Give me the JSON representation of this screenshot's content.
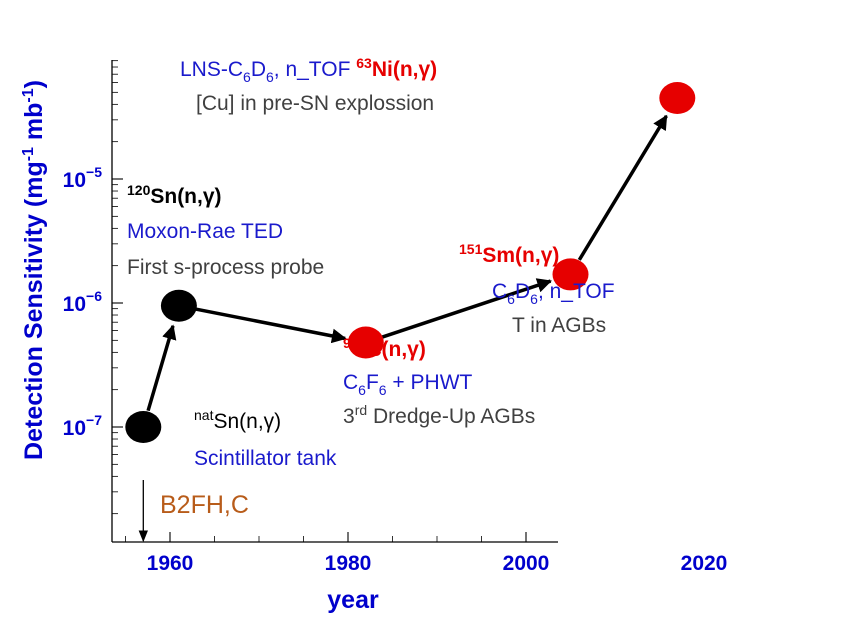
{
  "chart_data": {
    "type": "scatter",
    "xlabel": "year",
    "ylabel": "Detection Sensitivity (mg-1 mb-1)",
    "ylabel_parts": {
      "main": "Detection Sensitivity (mg",
      "exp1": "-1",
      "mid": " mb",
      "exp2": "-1",
      "end": ")"
    },
    "xlim": [
      1950,
      2025
    ],
    "ylim_log10": [
      -7.7,
      -4.0
    ],
    "log_y": true,
    "x_ticks": [
      1960,
      1980,
      2000,
      2020
    ],
    "x_tick_labels": [
      "1960",
      "1980",
      "2000",
      "2020"
    ],
    "y_ticks": [
      {
        "exp": -7,
        "base": "10",
        "sup": "−7"
      },
      {
        "exp": -6,
        "base": "10",
        "sup": "−6"
      },
      {
        "exp": -5,
        "base": "10",
        "sup": "−5"
      }
    ],
    "points": [
      {
        "x": 1957,
        "y": 1e-07,
        "color": "#000000"
      },
      {
        "x": 1961,
        "y": 9.5e-07,
        "color": "#000000"
      },
      {
        "x": 1982,
        "y": 4.8e-07,
        "color": "#e60000"
      },
      {
        "x": 2005,
        "y": 1.7e-06,
        "color": "#e60000"
      },
      {
        "x": 2017,
        "y": 4.5e-05,
        "color": "#e60000"
      }
    ],
    "arrows": [
      [
        0,
        1
      ],
      [
        1,
        2
      ],
      [
        2,
        3
      ],
      [
        3,
        4
      ]
    ],
    "marker_year": {
      "x": 1957,
      "label": "B2FH,C"
    },
    "annotations": {
      "natSn": {
        "sup": "nat",
        "text": "Sn(n,γ)",
        "sub_label": "Scintillator tank"
      },
      "sn120": {
        "sup": "120",
        "text": "Sn(n,γ)",
        "line2": "Moxon-Rae TED",
        "line3": "First s-process probe"
      },
      "tc99": {
        "sup": "99",
        "text": "Tc(n,γ)",
        "line2_a": "C",
        "line2_s1": "6",
        "line2_b": "F",
        "line2_s2": "6",
        "line2_c": " + PHWT",
        "line3_a": "3",
        "line3_sup": "rd",
        "line3_b": " Dredge-Up AGBs"
      },
      "sm151": {
        "sup": "151",
        "text": "Sm(n,γ)",
        "line2_a": "C",
        "line2_s1": "6",
        "line2_b": "D",
        "line2_s2": "6",
        "line2_c": ", n_TOF",
        "line3": "T in AGBs"
      },
      "ni63": {
        "l1_a": "LNS-C",
        "l1_s1": "6",
        "l1_b": "D",
        "l1_s2": "6",
        "l1_c": ", n_TOF ",
        "sup": "63",
        "text": "Ni(n,γ)",
        "line2": "[Cu] in pre-SN explossion"
      }
    },
    "colors": {
      "axis_label": "#0000cc",
      "red": "#e60000",
      "black": "#000000",
      "blue": "#1a1acc",
      "gray": "#404040",
      "brown": "#b85c1a"
    }
  }
}
